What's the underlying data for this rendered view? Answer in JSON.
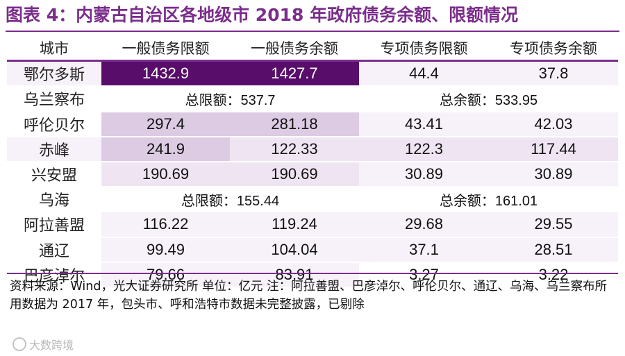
{
  "title": "图表 4：内蒙古自治区各地级市 2018 年政府债务余额、限额情况",
  "headers": [
    "城市",
    "一般债务限额",
    "一般债务余额",
    "专项债务限额",
    "专项债务余额"
  ],
  "rows": {
    "ordos": {
      "city": "鄂尔多斯",
      "v1": "1432.9",
      "v2": "1427.7",
      "v3": "44.4",
      "v4": "37.8"
    },
    "ulanqab": {
      "city": "乌兰察布",
      "limit": "总限额：537.7",
      "balance": "总余额：533.95"
    },
    "hulunbuir": {
      "city": "呼伦贝尔",
      "v1": "297.4",
      "v2": "281.18",
      "v3": "43.41",
      "v4": "42.03"
    },
    "chifeng": {
      "city": "赤峰",
      "v1": "241.9",
      "v2": "122.33",
      "v3": "122.3",
      "v4": "117.44"
    },
    "xinganmeng": {
      "city": "兴安盟",
      "v1": "190.69",
      "v2": "190.69",
      "v3": "30.89",
      "v4": "30.89"
    },
    "wuhai": {
      "city": "乌海",
      "limit": "总限额：155.44",
      "balance": "总余额：161.01"
    },
    "alxa": {
      "city": "阿拉善盟",
      "v1": "116.22",
      "v2": "119.24",
      "v3": "29.68",
      "v4": "29.55"
    },
    "tongliao": {
      "city": "通辽",
      "v1": "99.49",
      "v2": "104.04",
      "v3": "37.1",
      "v4": "28.51"
    },
    "bayannur": {
      "city": "巴彦淖尔",
      "v1": "79.66",
      "v2": "83.91",
      "v3": "3.27",
      "v4": "3.22"
    }
  },
  "note": "资料来源：Wind，光大证券研究所 单位：亿元  注：阿拉善盟、巴彦淖尔、呼伦贝尔、通辽、乌海、乌兰察布所用数据为 2017 年，包头市、呼和浩特市数据未完整披露，已剔除",
  "watermark": "大数跨境",
  "colors": {
    "accent": "#7b2d8c",
    "dark_cell": "#580d6a",
    "mid_cell": "#dccbe3",
    "light_cell": "#efe5f2",
    "pale_cell": "#f7f1f9"
  }
}
